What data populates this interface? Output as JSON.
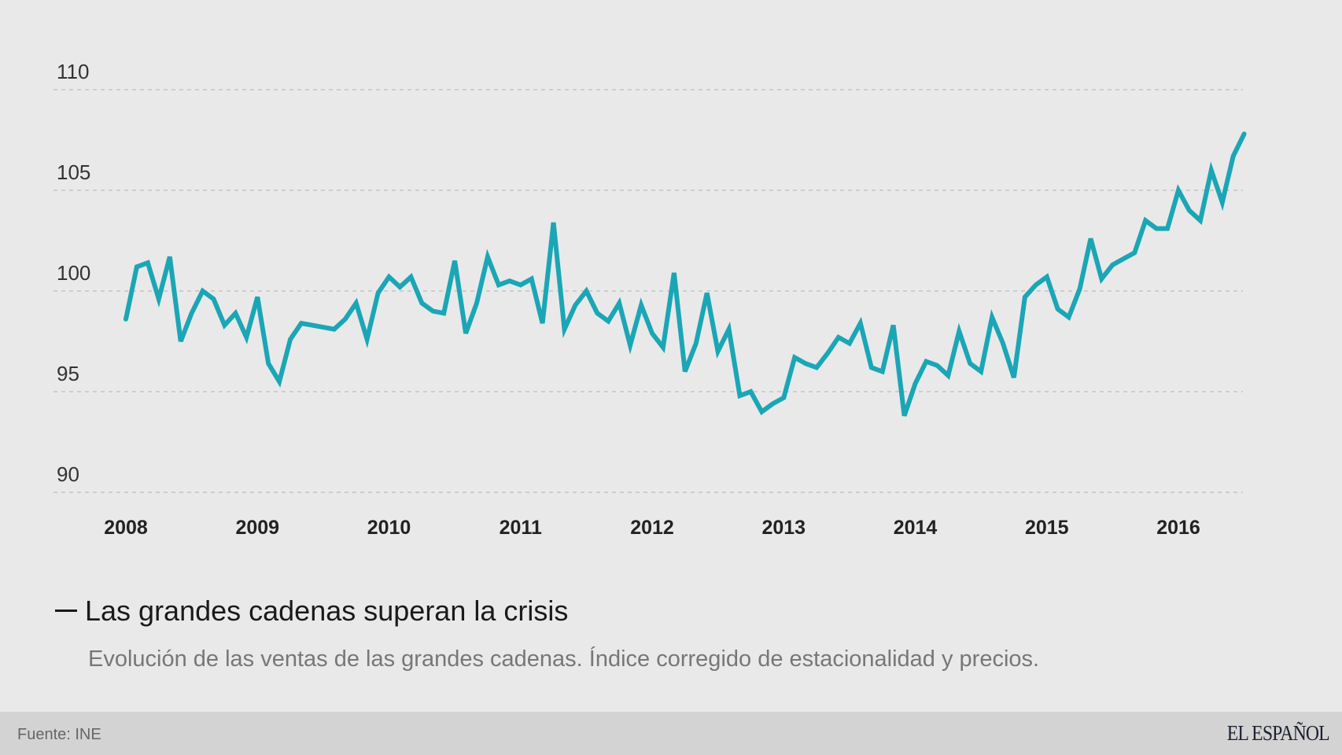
{
  "chart_data": {
    "type": "line",
    "title": "Las grandes cadenas superan la crisis",
    "subtitle": "Evolución de las ventas de las grandes cadenas. Índice corregido de estacionalidad y precios.",
    "xlabel": "",
    "ylabel": "",
    "ylim": [
      90,
      110
    ],
    "yticks": [
      "90",
      "95",
      "100",
      "105",
      "110"
    ],
    "xticks": [
      "2008",
      "2009",
      "2010",
      "2011",
      "2012",
      "2013",
      "2014",
      "2015",
      "2016"
    ],
    "x_start": "2008-01",
    "x_frequency": "monthly",
    "grid": "horizontal dashed",
    "line_color": "#1ba6b6",
    "values": [
      98.6,
      101.2,
      101.4,
      99.6,
      101.7,
      97.5,
      98.9,
      100.0,
      99.6,
      98.3,
      98.9,
      97.7,
      99.7,
      96.4,
      95.5,
      97.6,
      98.4,
      98.3,
      98.2,
      98.1,
      98.6,
      99.4,
      97.6,
      99.9,
      100.7,
      100.2,
      100.7,
      99.4,
      99.0,
      98.9,
      101.5,
      97.9,
      99.4,
      101.7,
      100.3,
      100.5,
      100.3,
      100.6,
      98.4,
      103.4,
      98.1,
      99.3,
      100.0,
      98.9,
      98.5,
      99.4,
      97.3,
      99.3,
      97.9,
      97.2,
      100.9,
      96.0,
      97.4,
      99.9,
      97.0,
      98.1,
      94.8,
      95.0,
      94.0,
      94.4,
      94.7,
      96.7,
      96.4,
      96.2,
      96.9,
      97.7,
      97.4,
      98.4,
      96.2,
      96.0,
      98.3,
      93.8,
      95.4,
      96.5,
      96.3,
      95.8,
      98.0,
      96.4,
      96.0,
      98.7,
      97.4,
      95.7,
      99.7,
      100.3,
      100.7,
      99.1,
      98.7,
      100.1,
      102.6,
      100.6,
      101.3,
      101.6,
      101.9,
      103.5,
      103.1,
      103.1,
      105.0,
      104.0,
      103.5,
      106.0,
      104.4,
      106.7,
      107.8
    ]
  },
  "footer": {
    "source": "Fuente: INE",
    "logo": "EL ESPAÑOL"
  }
}
